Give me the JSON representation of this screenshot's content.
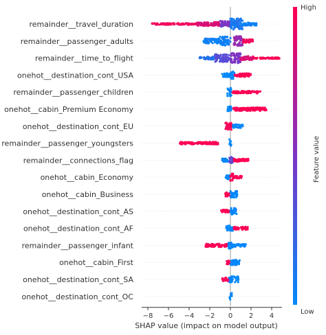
{
  "chart_data": {
    "type": "scatter",
    "subtype": "shap-beeswarm",
    "xlabel": "SHAP value (impact on model output)",
    "xlim": [
      -8.6,
      5.0
    ],
    "xticks": [
      -8,
      -6,
      -4,
      -2,
      0,
      2,
      4
    ],
    "zero_line": true,
    "grid": false,
    "colorbar": {
      "label": "Feature value",
      "high_label": "High",
      "low_label": "Low",
      "low_color": "#008afb",
      "mid_color": "#7d33c6",
      "high_color": "#ff0052"
    },
    "features": [
      {
        "name": "remainder__travel_duration",
        "min": -7.6,
        "max": 2.6,
        "segments": [
          {
            "x0": -7.6,
            "x1": -3.2,
            "h": 0.15,
            "v": 0.95
          },
          {
            "x0": -3.2,
            "x1": -1.0,
            "h": 0.35,
            "v": 0.85
          },
          {
            "x0": -1.0,
            "x1": 0.0,
            "h": 0.55,
            "v": 0.5
          },
          {
            "x0": 0.0,
            "x1": 1.2,
            "h": 1.0,
            "v": 0.1
          },
          {
            "x0": 1.2,
            "x1": 2.6,
            "h": 0.3,
            "v": 0.05
          }
        ]
      },
      {
        "name": "remainder__passenger_adults",
        "min": -2.6,
        "max": 2.2,
        "segments": [
          {
            "x0": -2.6,
            "x1": -1.0,
            "h": 0.45,
            "v": 0.05
          },
          {
            "x0": -1.0,
            "x1": 0.0,
            "h": 0.8,
            "v": 0.05
          },
          {
            "x0": 0.3,
            "x1": 1.2,
            "h": 0.9,
            "v": 0.6
          },
          {
            "x0": 1.2,
            "x1": 2.2,
            "h": 0.3,
            "v": 0.95
          }
        ]
      },
      {
        "name": "remainder__time_to_flight",
        "min": -3.0,
        "max": 4.8,
        "segments": [
          {
            "x0": -3.0,
            "x1": -1.5,
            "h": 0.25,
            "v": 0.15
          },
          {
            "x0": -1.5,
            "x1": 0.0,
            "h": 0.7,
            "v": 0.35
          },
          {
            "x0": 0.0,
            "x1": 1.0,
            "h": 0.9,
            "v": 0.5
          },
          {
            "x0": 1.0,
            "x1": 2.2,
            "h": 0.35,
            "v": 0.85
          },
          {
            "x0": 2.2,
            "x1": 4.8,
            "h": 0.12,
            "v": 1.0
          }
        ]
      },
      {
        "name": "onehot__destination_cont_USA",
        "min": -0.8,
        "max": 2.0,
        "segments": [
          {
            "x0": -0.8,
            "x1": 0.0,
            "h": 0.35,
            "v": 0.0
          },
          {
            "x0": 0.0,
            "x1": 0.4,
            "h": 0.7,
            "v": 0.0
          },
          {
            "x0": 0.4,
            "x1": 2.0,
            "h": 0.3,
            "v": 1.0
          }
        ]
      },
      {
        "name": "remainder__passenger_children",
        "min": -0.3,
        "max": 2.9,
        "segments": [
          {
            "x0": -0.3,
            "x1": 0.1,
            "h": 0.8,
            "v": 0.0
          },
          {
            "x0": 0.2,
            "x1": 2.9,
            "h": 0.22,
            "v": 1.0
          }
        ]
      },
      {
        "name": "onehot__cabin_Premium Economy",
        "min": -0.3,
        "max": 3.5,
        "segments": [
          {
            "x0": -0.3,
            "x1": 0.1,
            "h": 0.5,
            "v": 0.0
          },
          {
            "x0": 0.2,
            "x1": 3.5,
            "h": 0.3,
            "v": 1.0
          }
        ]
      },
      {
        "name": "onehot__destination_cont_EU",
        "min": -0.5,
        "max": 1.2,
        "segments": [
          {
            "x0": -0.5,
            "x1": 0.2,
            "h": 0.7,
            "v": 1.0
          },
          {
            "x0": 0.2,
            "x1": 1.2,
            "h": 0.3,
            "v": 0.0
          }
        ]
      },
      {
        "name": "remainder__passenger_youngsters",
        "min": -4.9,
        "max": 0.1,
        "segments": [
          {
            "x0": -4.9,
            "x1": -1.2,
            "h": 0.22,
            "v": 1.0
          },
          {
            "x0": -0.1,
            "x1": 0.1,
            "h": 0.7,
            "v": 0.0
          }
        ]
      },
      {
        "name": "remainder__connections_flag",
        "min": -0.8,
        "max": 1.8,
        "segments": [
          {
            "x0": -0.8,
            "x1": -0.1,
            "h": 0.3,
            "v": 0.0
          },
          {
            "x0": -0.1,
            "x1": 0.3,
            "h": 0.6,
            "v": 0.4
          },
          {
            "x0": 0.3,
            "x1": 1.8,
            "h": 0.25,
            "v": 1.0
          }
        ]
      },
      {
        "name": "onehot__cabin_Economy",
        "min": -0.5,
        "max": 1.1,
        "segments": [
          {
            "x0": -0.5,
            "x1": 0.0,
            "h": 0.4,
            "v": 0.0
          },
          {
            "x0": 0.0,
            "x1": 0.3,
            "h": 0.7,
            "v": 1.0
          },
          {
            "x0": 0.3,
            "x1": 1.1,
            "h": 0.25,
            "v": 1.0
          }
        ]
      },
      {
        "name": "onehot__cabin_Business",
        "min": -0.5,
        "max": 0.7,
        "segments": [
          {
            "x0": -0.5,
            "x1": 0.0,
            "h": 0.4,
            "v": 1.0
          },
          {
            "x0": 0.0,
            "x1": 0.7,
            "h": 0.6,
            "v": 0.0
          }
        ]
      },
      {
        "name": "onehot__destination_cont_AS",
        "min": -0.9,
        "max": 0.6,
        "segments": [
          {
            "x0": -0.9,
            "x1": 0.0,
            "h": 0.3,
            "v": 1.0
          },
          {
            "x0": 0.0,
            "x1": 0.6,
            "h": 0.6,
            "v": 0.0
          }
        ]
      },
      {
        "name": "onehot__destination_cont_AF",
        "min": -0.4,
        "max": 1.7,
        "segments": [
          {
            "x0": -0.4,
            "x1": 0.3,
            "h": 0.5,
            "v": 0.0
          },
          {
            "x0": 0.3,
            "x1": 1.7,
            "h": 0.3,
            "v": 1.0
          }
        ]
      },
      {
        "name": "remainder__passenger_infant",
        "min": -2.4,
        "max": 1.5,
        "segments": [
          {
            "x0": -2.4,
            "x1": -0.2,
            "h": 0.28,
            "v": 1.0
          },
          {
            "x0": -0.2,
            "x1": 0.3,
            "h": 0.6,
            "v": 0.0
          },
          {
            "x0": 0.3,
            "x1": 1.5,
            "h": 0.25,
            "v": 0.0
          }
        ]
      },
      {
        "name": "onehot__cabin_First",
        "min": -0.4,
        "max": 0.9,
        "segments": [
          {
            "x0": -0.4,
            "x1": 0.0,
            "h": 0.35,
            "v": 1.0
          },
          {
            "x0": 0.0,
            "x1": 0.9,
            "h": 0.5,
            "v": 0.0
          }
        ]
      },
      {
        "name": "onehot__destination_cont_SA",
        "min": -0.8,
        "max": 0.8,
        "segments": [
          {
            "x0": -0.8,
            "x1": -0.1,
            "h": 0.3,
            "v": 1.0
          },
          {
            "x0": -0.1,
            "x1": 0.8,
            "h": 0.55,
            "v": 0.0
          }
        ]
      },
      {
        "name": "onehot__destination_cont_OC",
        "min": -0.15,
        "max": 0.15,
        "segments": [
          {
            "x0": -0.15,
            "x1": 0.15,
            "h": 0.6,
            "v": 0.0
          }
        ]
      }
    ]
  }
}
